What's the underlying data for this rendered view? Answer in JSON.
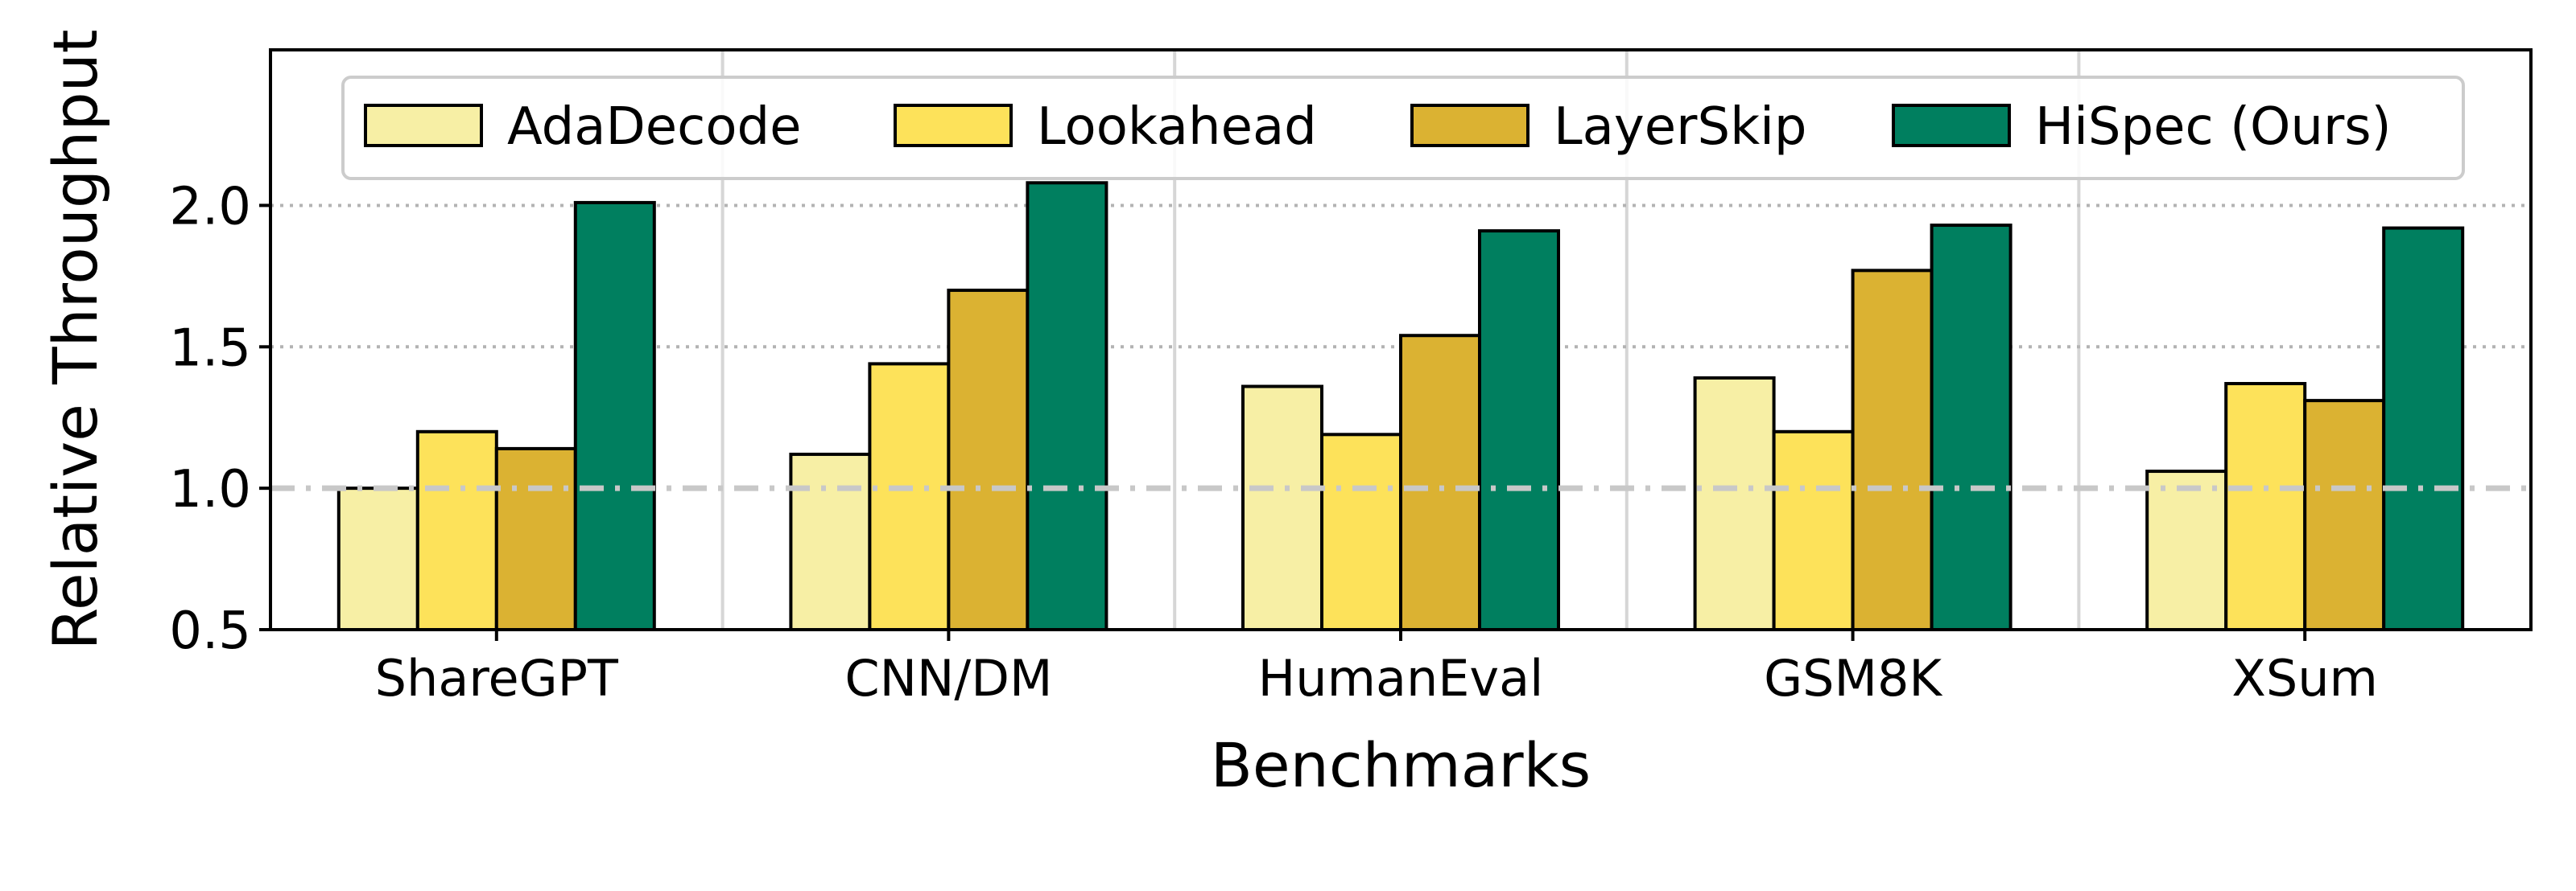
{
  "chart_data": {
    "type": "bar",
    "title": "",
    "xlabel": "Benchmarks",
    "ylabel": "Relative Throughput",
    "ylim": [
      0.5,
      2.55
    ],
    "yticks": [
      "0.5",
      "1.0",
      "1.5",
      "2.0"
    ],
    "ytick_values": [
      0.5,
      1.0,
      1.5,
      2.0
    ],
    "dotted_gridlines_at": [
      1.5,
      2.0
    ],
    "reference_line": 1.0,
    "legend_position": "top",
    "categories": [
      "ShareGPT",
      "CNN/DM",
      "HumanEval",
      "GSM8K",
      "XSum"
    ],
    "series": [
      {
        "name": "AdaDecode",
        "color": "#f7efa5",
        "values": [
          1.0,
          1.12,
          1.36,
          1.39,
          1.06
        ]
      },
      {
        "name": "Lookahead",
        "color": "#fde25a",
        "values": [
          1.2,
          1.44,
          1.19,
          1.2,
          1.37
        ]
      },
      {
        "name": "LayerSkip",
        "color": "#dbb232",
        "values": [
          1.14,
          1.7,
          1.54,
          1.77,
          1.31
        ]
      },
      {
        "name": "HiSpec (Ours)",
        "color": "#007f5f",
        "values": [
          2.01,
          2.08,
          1.91,
          1.93,
          1.92
        ]
      }
    ]
  }
}
